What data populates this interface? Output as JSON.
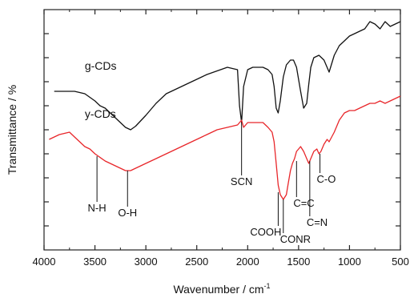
{
  "chart_data": {
    "type": "line",
    "xlabel": "Wavenumber / cm",
    "xlabel_superscript": "-1",
    "ylabel": "Transmittance / %",
    "xlim": [
      4000,
      500
    ],
    "x_reversed": true,
    "ylim": [
      0,
      10
    ],
    "grid": false,
    "x_ticks": [
      4000,
      3500,
      3000,
      2500,
      2000,
      1500,
      1000,
      500
    ],
    "x_tick_labels": [
      "4000",
      "3500",
      "3000",
      "2500",
      "2000",
      "1500",
      "1000",
      "500"
    ],
    "y_tick_positions": [
      1,
      2,
      3,
      4,
      5,
      6,
      7,
      8,
      9
    ],
    "series": [
      {
        "name": "g-CDs",
        "color": "#111111",
        "x": [
          3900,
          3800,
          3700,
          3600,
          3500,
          3450,
          3400,
          3300,
          3200,
          3150,
          3100,
          3000,
          2900,
          2800,
          2600,
          2400,
          2200,
          2100,
          2080,
          2060,
          2040,
          2000,
          1950,
          1900,
          1850,
          1800,
          1760,
          1740,
          1720,
          1700,
          1680,
          1650,
          1620,
          1580,
          1550,
          1520,
          1480,
          1450,
          1420,
          1400,
          1380,
          1350,
          1300,
          1250,
          1200,
          1150,
          1100,
          1050,
          1000,
          950,
          900,
          850,
          800,
          750,
          700,
          650,
          600,
          550,
          500
        ],
        "values": [
          6.6,
          6.6,
          6.6,
          6.5,
          6.2,
          6.0,
          5.9,
          5.5,
          5.1,
          5.0,
          5.15,
          5.6,
          6.1,
          6.5,
          6.9,
          7.3,
          7.6,
          7.5,
          6.0,
          5.3,
          6.8,
          7.5,
          7.6,
          7.6,
          7.6,
          7.5,
          7.3,
          6.8,
          5.9,
          5.7,
          6.2,
          7.2,
          7.7,
          7.9,
          7.9,
          7.6,
          6.6,
          5.9,
          6.1,
          6.9,
          7.6,
          8.0,
          8.1,
          7.9,
          7.4,
          8.1,
          8.5,
          8.7,
          8.9,
          9.0,
          9.1,
          9.2,
          9.5,
          9.4,
          9.2,
          9.5,
          9.3,
          9.4,
          9.5
        ]
      },
      {
        "name": "y-CDs",
        "color": "#e8262a",
        "x": [
          3950,
          3850,
          3750,
          3700,
          3650,
          3600,
          3550,
          3500,
          3400,
          3300,
          3200,
          3150,
          3100,
          3000,
          2900,
          2800,
          2700,
          2600,
          2500,
          2400,
          2300,
          2200,
          2100,
          2060,
          2040,
          2000,
          1950,
          1900,
          1850,
          1800,
          1760,
          1740,
          1720,
          1700,
          1680,
          1650,
          1620,
          1600,
          1580,
          1560,
          1540,
          1520,
          1500,
          1480,
          1450,
          1420,
          1400,
          1380,
          1350,
          1320,
          1300,
          1280,
          1250,
          1220,
          1200,
          1150,
          1100,
          1050,
          1000,
          950,
          900,
          850,
          800,
          750,
          700,
          650,
          600,
          550,
          500
        ],
        "values": [
          4.6,
          4.8,
          4.9,
          4.7,
          4.5,
          4.3,
          4.2,
          4.0,
          3.7,
          3.5,
          3.3,
          3.3,
          3.4,
          3.6,
          3.8,
          4.0,
          4.2,
          4.4,
          4.6,
          4.8,
          5.0,
          5.1,
          5.2,
          5.4,
          5.1,
          5.3,
          5.3,
          5.3,
          5.3,
          5.1,
          4.9,
          4.5,
          3.6,
          2.7,
          2.3,
          2.1,
          2.3,
          2.8,
          3.3,
          3.6,
          3.8,
          4.1,
          4.2,
          4.3,
          4.1,
          3.8,
          3.6,
          3.8,
          4.1,
          4.2,
          4.0,
          4.1,
          4.4,
          4.6,
          4.5,
          4.9,
          5.4,
          5.7,
          5.8,
          5.8,
          5.9,
          6.0,
          6.1,
          6.1,
          6.2,
          6.1,
          6.2,
          6.3,
          6.4
        ]
      }
    ],
    "series_labels": [
      {
        "text": "g-CDs",
        "x": 3600,
        "y": 7.5
      },
      {
        "text": "y-CDs",
        "x": 3600,
        "y": 5.5
      }
    ],
    "annotations": [
      {
        "text": "N-H",
        "x": 3480,
        "y_point": 3.9,
        "y_text": 1.6,
        "anchor": "middle"
      },
      {
        "text": "O-H",
        "x": 3180,
        "y_point": 3.3,
        "y_text": 1.4,
        "anchor": "middle"
      },
      {
        "text": "SCN",
        "x": 2060,
        "y_point": 5.3,
        "y_text": 2.7,
        "anchor": "middle"
      },
      {
        "text": "COOH",
        "x": 1700,
        "y_point": 2.4,
        "y_text": 0.6,
        "anchor": "end"
      },
      {
        "text": "CONR",
        "x": 1650,
        "y_point": 2.1,
        "y_text": 0.3,
        "anchor": "start"
      },
      {
        "text": "C=C",
        "x": 1520,
        "y_point": 3.7,
        "y_text": 1.8,
        "anchor": "start"
      },
      {
        "text": "C=N",
        "x": 1390,
        "y_point": 3.7,
        "y_text": 1.0,
        "anchor": "start"
      },
      {
        "text": "C-O",
        "x": 1290,
        "y_point": 4.0,
        "y_text": 2.8,
        "anchor": "start"
      }
    ]
  }
}
